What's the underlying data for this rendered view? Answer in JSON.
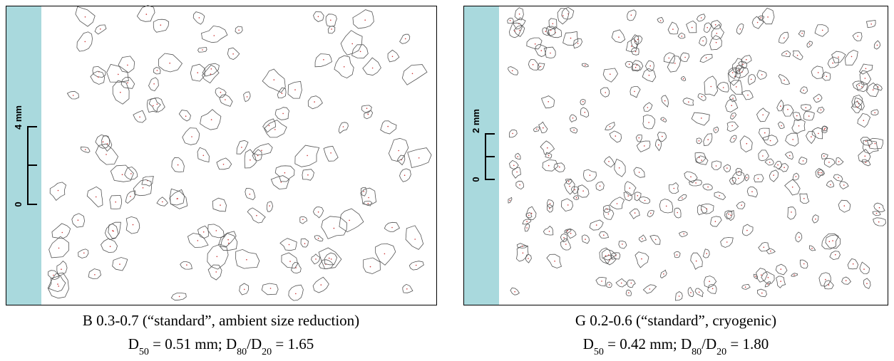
{
  "panels": [
    {
      "scale": {
        "top_label": "4 mm",
        "bottom_label": "0"
      },
      "caption": {
        "line1": "B 0.3-0.7 (“standard”, ambient size reduction)",
        "line2": [
          {
            "text": "D"
          },
          {
            "text": "50",
            "sub": true
          },
          {
            "text": " = 0.51 mm; D"
          },
          {
            "text": "80",
            "sub": true
          },
          {
            "text": "/D"
          },
          {
            "text": "20",
            "sub": true
          },
          {
            "text": " = 1.65"
          }
        ]
      }
    },
    {
      "scale": {
        "top_label": "2 mm",
        "bottom_label": "0"
      },
      "caption": {
        "line1": "G 0.2-0.6 (“standard”, cryogenic)",
        "line2": [
          {
            "text": "D"
          },
          {
            "text": "50",
            "sub": true
          },
          {
            "text": " = 0.42 mm; D"
          },
          {
            "text": "80",
            "sub": true
          },
          {
            "text": "/D"
          },
          {
            "text": "20",
            "sub": true
          },
          {
            "text": " = 1.80"
          }
        ]
      }
    }
  ]
}
